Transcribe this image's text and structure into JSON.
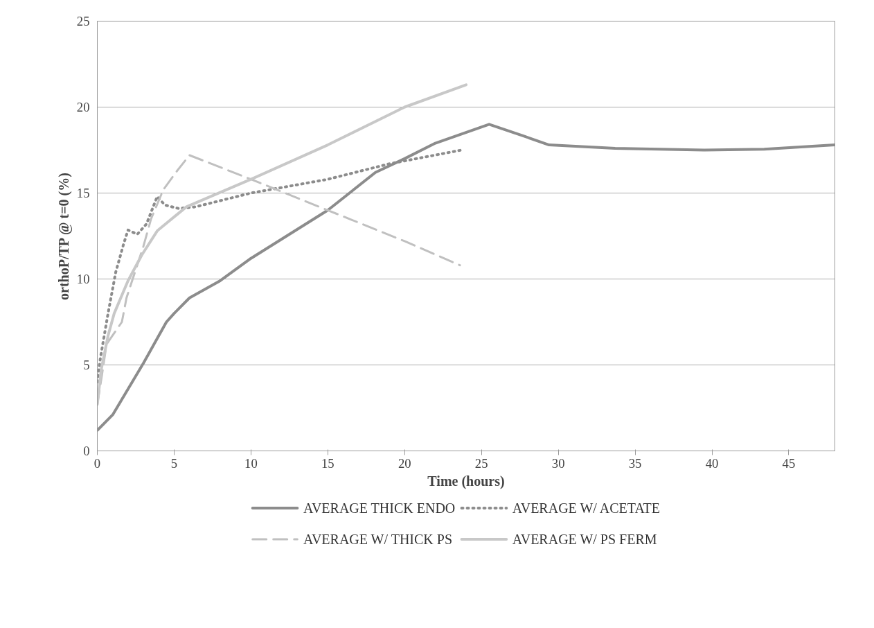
{
  "chart_data": {
    "type": "line",
    "xlabel": "Time (hours)",
    "ylabel": "orthoP/TP @ t=0 (%)",
    "xlim": [
      0,
      48
    ],
    "xticks": [
      0,
      5,
      10,
      15,
      20,
      25,
      30,
      35,
      40,
      45
    ],
    "ylim": [
      0,
      25
    ],
    "yticks": [
      0,
      5,
      10,
      15,
      20,
      25
    ],
    "grid": "y",
    "legend": "bottom",
    "marker": "none",
    "series": [
      {
        "name": "AVERAGE THICK ENDO",
        "color": "#8c8c8c",
        "line_style": "solid",
        "x": [
          0,
          1,
          2,
          3,
          4,
          4.5,
          5,
          6,
          8,
          10,
          15,
          18.1,
          20,
          22,
          25.5,
          27.8,
          29.4,
          33.7,
          39.5,
          43.4,
          48
        ],
        "values": [
          1.2,
          2.1,
          3.6,
          5.1,
          6.7,
          7.5,
          8.0,
          8.9,
          9.9,
          11.2,
          14.0,
          16.2,
          17.0,
          17.9,
          19.0,
          18.3,
          17.8,
          17.6,
          17.5,
          17.55,
          17.8
        ]
      },
      {
        "name": "AVERAGE W/ ACETATE",
        "color": "#8c8c8c",
        "line_style": "dotted",
        "x": [
          0,
          0.2,
          0.7,
          1.2,
          1.7,
          2.0,
          2.6,
          3.2,
          3.9,
          4.4,
          5.3,
          6.4,
          10,
          15,
          19,
          23.7
        ],
        "values": [
          4.0,
          5.4,
          8.0,
          10.4,
          12.0,
          12.85,
          12.6,
          13.2,
          14.8,
          14.3,
          14.1,
          14.2,
          15.0,
          15.8,
          16.7,
          17.5
        ]
      },
      {
        "name": "AVERAGE W/ THICK PS",
        "color": "#c0c0c0",
        "line_style": "dashed",
        "x": [
          0,
          0.3,
          0.6,
          1.6,
          1.9,
          3.0,
          3.5,
          4.3,
          5.2,
          6.0,
          10,
          15,
          20,
          23.6
        ],
        "values": [
          2.7,
          4.4,
          6.2,
          7.5,
          8.9,
          11.9,
          13.5,
          15.2,
          16.3,
          17.2,
          15.8,
          14.0,
          12.2,
          10.8
        ]
      },
      {
        "name": "AVERAGE W/ PS FERM",
        "color": "#c8c8c8",
        "line_style": "solid",
        "x": [
          0,
          0.25,
          0.7,
          1.1,
          2.0,
          2.9,
          3.9,
          5.8,
          10,
          15,
          20,
          24.0
        ],
        "values": [
          2.7,
          4.7,
          6.7,
          8.0,
          9.9,
          11.4,
          12.8,
          14.2,
          15.8,
          17.8,
          20.0,
          21.3
        ]
      }
    ]
  }
}
